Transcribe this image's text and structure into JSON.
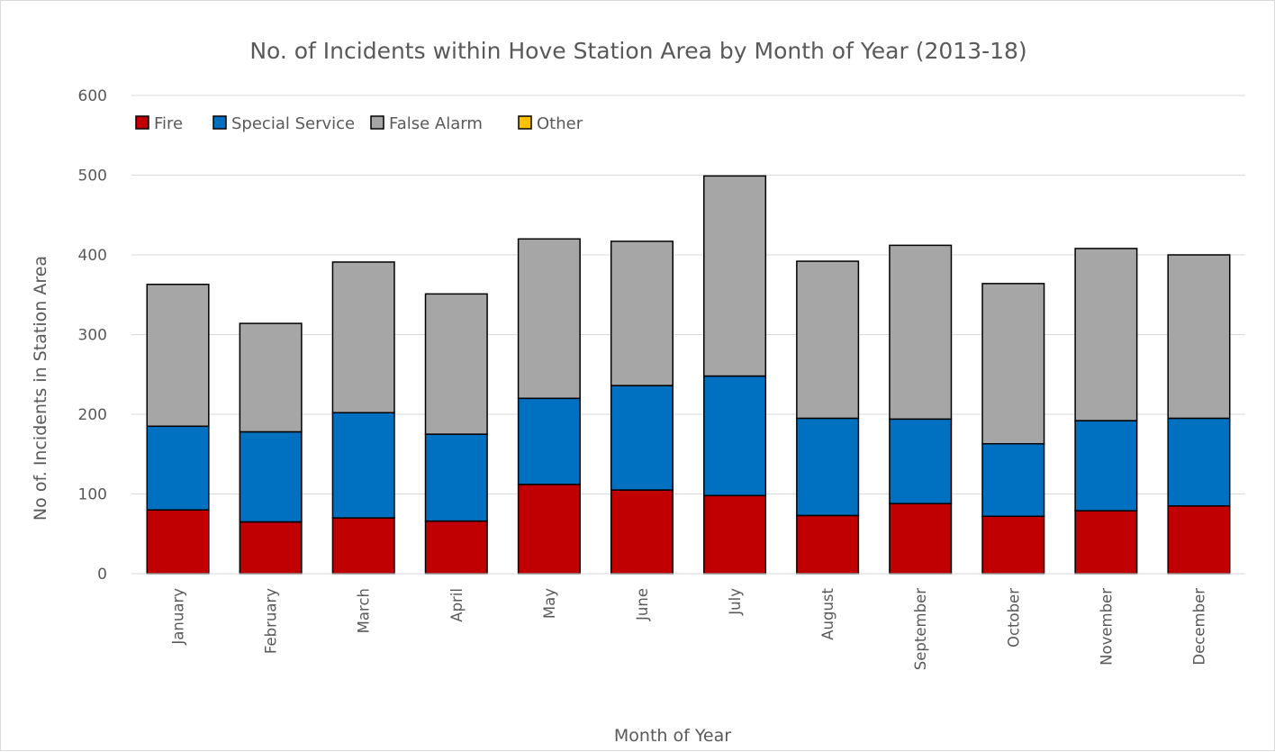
{
  "chart_data": {
    "type": "bar",
    "stacked": true,
    "title": "No. of Incidents within Hove Station Area by Month of Year (2013-18)",
    "xlabel": "Month of Year",
    "ylabel": "No of. Incidents in Station Area",
    "ylim": [
      0,
      600
    ],
    "yticks": [
      "0",
      "100",
      "200",
      "300",
      "400",
      "500",
      "600"
    ],
    "grid": true,
    "legend_position": "top-left",
    "categories": [
      "January",
      "February",
      "March",
      "April",
      "May",
      "June",
      "July",
      "August",
      "September",
      "October",
      "November",
      "December"
    ],
    "series": [
      {
        "name": "Fire",
        "color": "#c00000",
        "values": [
          80,
          65,
          70,
          66,
          112,
          105,
          98,
          73,
          88,
          72,
          79,
          85
        ]
      },
      {
        "name": "Special Service",
        "color": "#0070c0",
        "values": [
          105,
          113,
          132,
          109,
          108,
          131,
          150,
          122,
          106,
          91,
          113,
          110
        ]
      },
      {
        "name": "False Alarm",
        "color": "#a6a6a6",
        "values": [
          178,
          136,
          189,
          176,
          200,
          181,
          251,
          197,
          218,
          201,
          216,
          205
        ]
      },
      {
        "name": "Other",
        "color": "#ffc000",
        "values": [
          0,
          0,
          0,
          0,
          0,
          0,
          0,
          0,
          0,
          0,
          0,
          0
        ]
      }
    ]
  }
}
